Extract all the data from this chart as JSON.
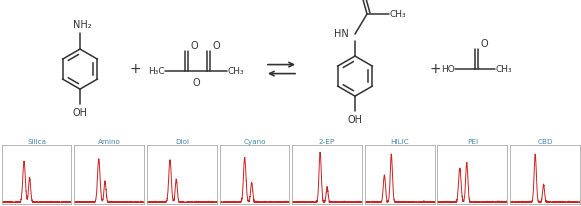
{
  "bg_color": "#ffffff",
  "panel_labels": [
    "Silica",
    "Amino",
    "Diol",
    "Cyano",
    "2-EP",
    "HILIC",
    "PEI",
    "CBD"
  ],
  "label_color": "#4488aa",
  "peak_color": "#cc2222",
  "panel_bg": "#ffffff",
  "panel_border": "#aaaaaa",
  "line_color": "#333333",
  "chem_bg": "#ffffff",
  "lw": 1.1,
  "font_size": 6.5
}
